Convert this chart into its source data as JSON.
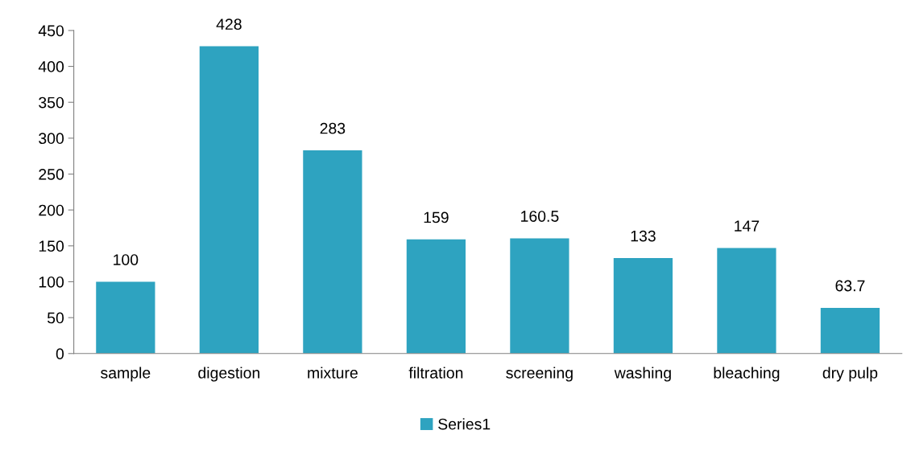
{
  "chart_data": {
    "type": "bar",
    "categories": [
      "sample",
      "digestion",
      "mixture",
      "filtration",
      "screening",
      "washing",
      "bleaching",
      "dry pulp"
    ],
    "series": [
      {
        "name": "Series1",
        "color": "#2ea3c0",
        "values": [
          100,
          428,
          283,
          159,
          160.5,
          133,
          147,
          63.7
        ]
      }
    ],
    "ylim": [
      0,
      450
    ],
    "yticks": [
      0,
      50,
      100,
      150,
      200,
      250,
      300,
      350,
      400,
      450
    ],
    "data_labels": true,
    "grid": false,
    "legend": "bottom"
  }
}
